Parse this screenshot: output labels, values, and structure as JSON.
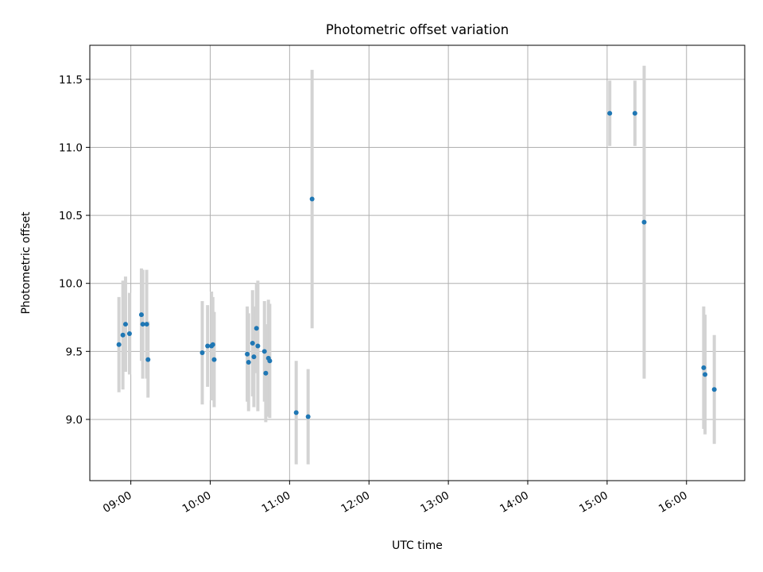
{
  "chart_data": {
    "type": "scatter",
    "title": "Photometric offset variation",
    "xlabel": "UTC time",
    "ylabel": "Photometric offset",
    "x_unit": "hours UTC",
    "xlim": [
      "08:29",
      "16:44"
    ],
    "ylim": [
      8.55,
      11.75
    ],
    "xticks": [
      "09:00",
      "10:00",
      "11:00",
      "12:00",
      "13:00",
      "14:00",
      "15:00",
      "16:00"
    ],
    "yticks": [
      "9.0",
      "9.5",
      "10.0",
      "10.5",
      "11.0",
      "11.5"
    ],
    "grid": true,
    "legend": "none",
    "colors": {
      "point": "#1f77b4",
      "errorbar": "#d3d3d3",
      "grid": "#b0b0b0",
      "axes": "#000000"
    },
    "series": [
      {
        "points": [
          {
            "t": "08:51",
            "y": 9.55,
            "err": 0.35
          },
          {
            "t": "08:54",
            "y": 9.62,
            "err": 0.4
          },
          {
            "t": "08:56",
            "y": 9.7,
            "err": 0.35
          },
          {
            "t": "08:59",
            "y": 9.63,
            "err": 0.3
          },
          {
            "t": "09:08",
            "y": 9.77,
            "err": 0.34
          },
          {
            "t": "09:09",
            "y": 9.7,
            "err": 0.4
          },
          {
            "t": "09:12",
            "y": 9.7,
            "err": 0.4
          },
          {
            "t": "09:13",
            "y": 9.44,
            "err": 0.28
          },
          {
            "t": "09:54",
            "y": 9.49,
            "err": 0.38
          },
          {
            "t": "09:58",
            "y": 9.54,
            "err": 0.3
          },
          {
            "t": "10:01",
            "y": 9.54,
            "err": 0.4
          },
          {
            "t": "10:02",
            "y": 9.55,
            "err": 0.35
          },
          {
            "t": "10:03",
            "y": 9.44,
            "err": 0.35
          },
          {
            "t": "10:28",
            "y": 9.48,
            "err": 0.35
          },
          {
            "t": "10:29",
            "y": 9.42,
            "err": 0.36
          },
          {
            "t": "10:32",
            "y": 9.56,
            "err": 0.39
          },
          {
            "t": "10:33",
            "y": 9.46,
            "err": 0.37
          },
          {
            "t": "10:35",
            "y": 9.67,
            "err": 0.33
          },
          {
            "t": "10:36",
            "y": 9.54,
            "err": 0.48
          },
          {
            "t": "10:41",
            "y": 9.5,
            "err": 0.37
          },
          {
            "t": "10:42",
            "y": 9.34,
            "err": 0.36
          },
          {
            "t": "10:44",
            "y": 9.45,
            "err": 0.43
          },
          {
            "t": "10:45",
            "y": 9.43,
            "err": 0.42
          },
          {
            "t": "11:05",
            "y": 9.05,
            "err": 0.38
          },
          {
            "t": "11:14",
            "y": 9.02,
            "err": 0.35
          },
          {
            "t": "11:17",
            "y": 10.62,
            "err": 0.95
          },
          {
            "t": "15:02",
            "y": 11.25,
            "err": 0.24
          },
          {
            "t": "15:21",
            "y": 11.25,
            "err": 0.24
          },
          {
            "t": "15:28",
            "y": 10.45,
            "err": 1.15
          },
          {
            "t": "16:13",
            "y": 9.38,
            "err": 0.45
          },
          {
            "t": "16:14",
            "y": 9.33,
            "err": 0.44
          },
          {
            "t": "16:21",
            "y": 9.22,
            "err": 0.4
          }
        ]
      }
    ]
  }
}
